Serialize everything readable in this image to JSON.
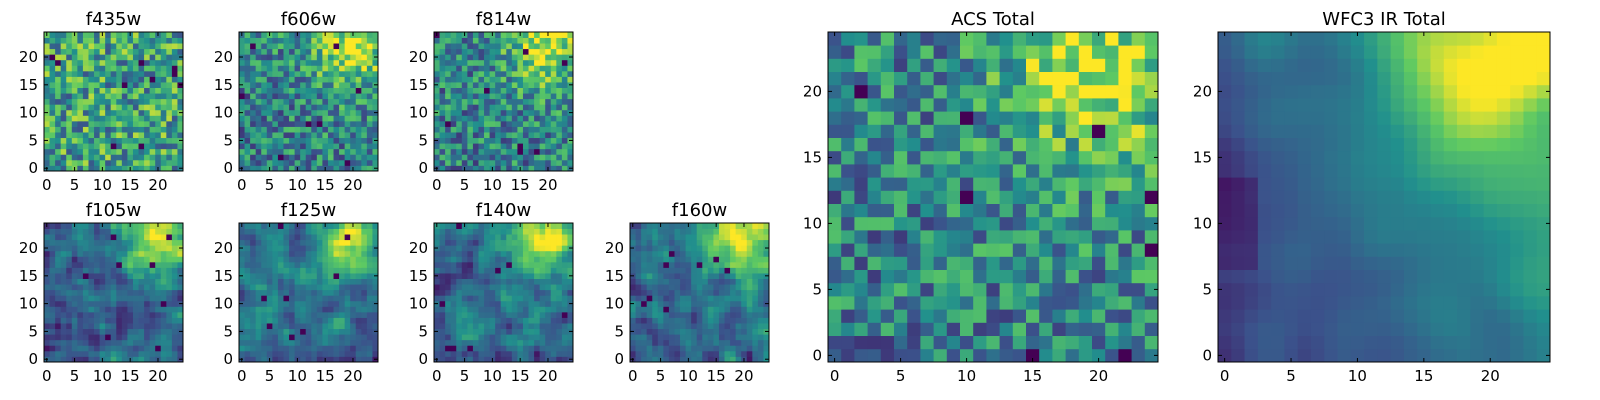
{
  "figure": {
    "description_note": "Grid of heat-map panels showing flux cutouts per filter band",
    "colormap": [
      "#440154",
      "#3b528b",
      "#21908d",
      "#5dc963",
      "#fde725"
    ]
  },
  "chart_data": [
    {
      "type": "heatmap",
      "title": "f435w",
      "xticks": [
        "0",
        "5",
        "10",
        "15",
        "20"
      ],
      "yticks": [
        "0",
        "5",
        "10",
        "15",
        "20"
      ],
      "grid_size": 25,
      "pattern": "noise",
      "seed": 11
    },
    {
      "type": "heatmap",
      "title": "f606w",
      "xticks": [
        "0",
        "5",
        "10",
        "15",
        "20"
      ],
      "yticks": [
        "0",
        "5",
        "10",
        "15",
        "20"
      ],
      "grid_size": 25,
      "pattern": "noise-blob",
      "seed": 23
    },
    {
      "type": "heatmap",
      "title": "f814w",
      "xticks": [
        "0",
        "5",
        "10",
        "15",
        "20"
      ],
      "yticks": [
        "0",
        "5",
        "10",
        "15",
        "20"
      ],
      "grid_size": 25,
      "pattern": "noise-blob",
      "seed": 37
    },
    {
      "type": "heatmap",
      "title": "f105w",
      "xticks": [
        "0",
        "5",
        "10",
        "15",
        "20"
      ],
      "yticks": [
        "0",
        "5",
        "10",
        "15",
        "20"
      ],
      "grid_size": 25,
      "pattern": "smooth-blob",
      "seed": 41
    },
    {
      "type": "heatmap",
      "title": "f125w",
      "xticks": [
        "0",
        "5",
        "10",
        "15",
        "20"
      ],
      "yticks": [
        "0",
        "5",
        "10",
        "15",
        "20"
      ],
      "grid_size": 25,
      "pattern": "smooth-blob",
      "seed": 53
    },
    {
      "type": "heatmap",
      "title": "f140w",
      "xticks": [
        "0",
        "5",
        "10",
        "15",
        "20"
      ],
      "yticks": [
        "0",
        "5",
        "10",
        "15",
        "20"
      ],
      "grid_size": 25,
      "pattern": "smooth-blob",
      "seed": 67
    },
    {
      "type": "heatmap",
      "title": "f160w",
      "xticks": [
        "0",
        "5",
        "10",
        "15",
        "20"
      ],
      "yticks": [
        "0",
        "5",
        "10",
        "15",
        "20"
      ],
      "grid_size": 25,
      "pattern": "smooth-blob",
      "seed": 79
    },
    {
      "type": "heatmap",
      "title": "ACS Total",
      "xticks": [
        "0",
        "5",
        "10",
        "15",
        "20"
      ],
      "yticks": [
        "0",
        "5",
        "10",
        "15",
        "20"
      ],
      "grid_size": 25,
      "pattern": "noise-blob",
      "seed": 97
    },
    {
      "type": "heatmap",
      "title": "WFC3 IR Total",
      "xticks": [
        "0",
        "5",
        "10",
        "15",
        "20"
      ],
      "yticks": [
        "0",
        "5",
        "10",
        "15",
        "20"
      ],
      "grid_size": 25,
      "pattern": "very-smooth",
      "seed": 113
    }
  ]
}
